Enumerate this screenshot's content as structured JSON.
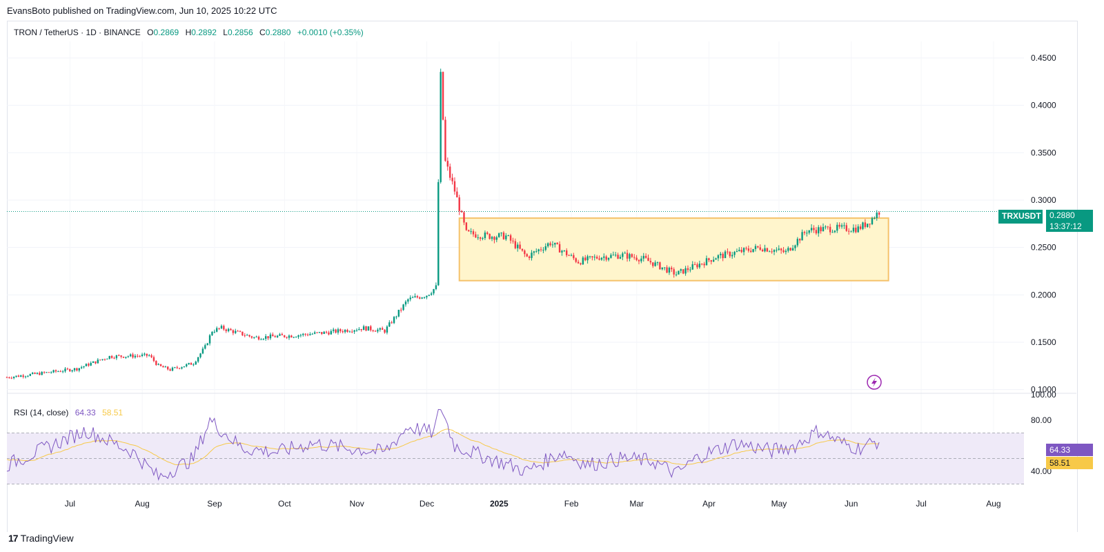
{
  "publisher_line": "EvansBoto published on TradingView.com, Jun 10, 2025 10:22 UTC",
  "legend": {
    "symbol": "TRON / TetherUS · 1D · BINANCE",
    "o_label": "O",
    "o": "0.2869",
    "h_label": "H",
    "h": "0.2892",
    "l_label": "L",
    "l": "0.2856",
    "c_label": "C",
    "c": "0.2880",
    "change": "+0.0010 (+0.35%)"
  },
  "price_axis": {
    "ticks": [
      "0.4500",
      "0.4000",
      "0.3500",
      "0.3000",
      "0.2500",
      "0.2000",
      "0.1500",
      "0.1000"
    ],
    "symbol_tag": "TRXUSDT",
    "last_price": "0.2880",
    "countdown": "13:37:12"
  },
  "rsi": {
    "title": "RSI (14, close)",
    "value": "64.33",
    "ma_value": "58.51",
    "ticks": [
      "100.00",
      "80.00",
      "40.00"
    ]
  },
  "time_axis": [
    "Jul",
    "Aug",
    "Sep",
    "Oct",
    "Nov",
    "Dec",
    "2025",
    "Feb",
    "Mar",
    "Apr",
    "May",
    "Jun",
    "Jul",
    "Aug"
  ],
  "footer_brand": "TradingView",
  "colors": {
    "up": "#089981",
    "down": "#f23645",
    "rsi_line": "#7e57c2",
    "rsi_ma": "#f7c948",
    "range_box_fill": "#fff5cc",
    "range_box_stroke": "#f5c26b"
  },
  "chart_data": {
    "type": "candlestick",
    "symbol": "TRXUSDT",
    "ylim": [
      0.1,
      0.45
    ],
    "range_box": {
      "from": "2024-12-12",
      "to": "2025-06-14",
      "low": 0.215,
      "high": 0.281
    },
    "close_path": [
      [
        "2024-06-01",
        0.113
      ],
      [
        "2024-06-15",
        0.117
      ],
      [
        "2024-07-01",
        0.122
      ],
      [
        "2024-07-15",
        0.135
      ],
      [
        "2024-08-01",
        0.136
      ],
      [
        "2024-08-05",
        0.125
      ],
      [
        "2024-08-10",
        0.121
      ],
      [
        "2024-08-20",
        0.128
      ],
      [
        "2024-08-25",
        0.145
      ],
      [
        "2024-08-28",
        0.162
      ],
      [
        "2024-09-01",
        0.165
      ],
      [
        "2024-09-15",
        0.155
      ],
      [
        "2024-10-01",
        0.157
      ],
      [
        "2024-10-15",
        0.16
      ],
      [
        "2024-11-01",
        0.165
      ],
      [
        "2024-11-10",
        0.162
      ],
      [
        "2024-11-20",
        0.195
      ],
      [
        "2024-11-28",
        0.2
      ],
      [
        "2024-12-02",
        0.208
      ],
      [
        "2024-12-04",
        0.43
      ],
      [
        "2024-12-06",
        0.34
      ],
      [
        "2024-12-10",
        0.31
      ],
      [
        "2024-12-15",
        0.265
      ],
      [
        "2024-12-25",
        0.262
      ],
      [
        "2025-01-01",
        0.262
      ],
      [
        "2025-01-10",
        0.24
      ],
      [
        "2025-01-20",
        0.255
      ],
      [
        "2025-02-01",
        0.235
      ],
      [
        "2025-02-10",
        0.24
      ],
      [
        "2025-02-20",
        0.242
      ],
      [
        "2025-03-01",
        0.238
      ],
      [
        "2025-03-15",
        0.222
      ],
      [
        "2025-04-01",
        0.24
      ],
      [
        "2025-04-10",
        0.245
      ],
      [
        "2025-04-20",
        0.25
      ],
      [
        "2025-05-01",
        0.245
      ],
      [
        "2025-05-10",
        0.268
      ],
      [
        "2025-05-20",
        0.27
      ],
      [
        "2025-06-01",
        0.27
      ],
      [
        "2025-06-05",
        0.276
      ],
      [
        "2025-06-10",
        0.288
      ]
    ],
    "rsi_path": [
      [
        "2024-06-01",
        45
      ],
      [
        "2024-06-20",
        60
      ],
      [
        "2024-07-05",
        72
      ],
      [
        "2024-07-25",
        55
      ],
      [
        "2024-08-05",
        35
      ],
      [
        "2024-08-20",
        50
      ],
      [
        "2024-08-27",
        80
      ],
      [
        "2024-09-10",
        58
      ],
      [
        "2024-09-25",
        55
      ],
      [
        "2024-10-10",
        62
      ],
      [
        "2024-10-25",
        58
      ],
      [
        "2024-11-10",
        55
      ],
      [
        "2024-11-20",
        75
      ],
      [
        "2024-12-01",
        70
      ],
      [
        "2024-12-04",
        91
      ],
      [
        "2024-12-10",
        60
      ],
      [
        "2024-12-25",
        50
      ],
      [
        "2025-01-10",
        40
      ],
      [
        "2025-01-25",
        55
      ],
      [
        "2025-02-05",
        45
      ],
      [
        "2025-02-20",
        50
      ],
      [
        "2025-03-05",
        48
      ],
      [
        "2025-03-15",
        38
      ],
      [
        "2025-03-25",
        52
      ],
      [
        "2025-04-10",
        62
      ],
      [
        "2025-04-25",
        56
      ],
      [
        "2025-05-05",
        60
      ],
      [
        "2025-05-15",
        72
      ],
      [
        "2025-05-25",
        62
      ],
      [
        "2025-06-01",
        58
      ],
      [
        "2025-06-10",
        64
      ]
    ],
    "rsi_ylim": [
      20,
      100
    ],
    "rsi_band": [
      30,
      70
    ]
  }
}
